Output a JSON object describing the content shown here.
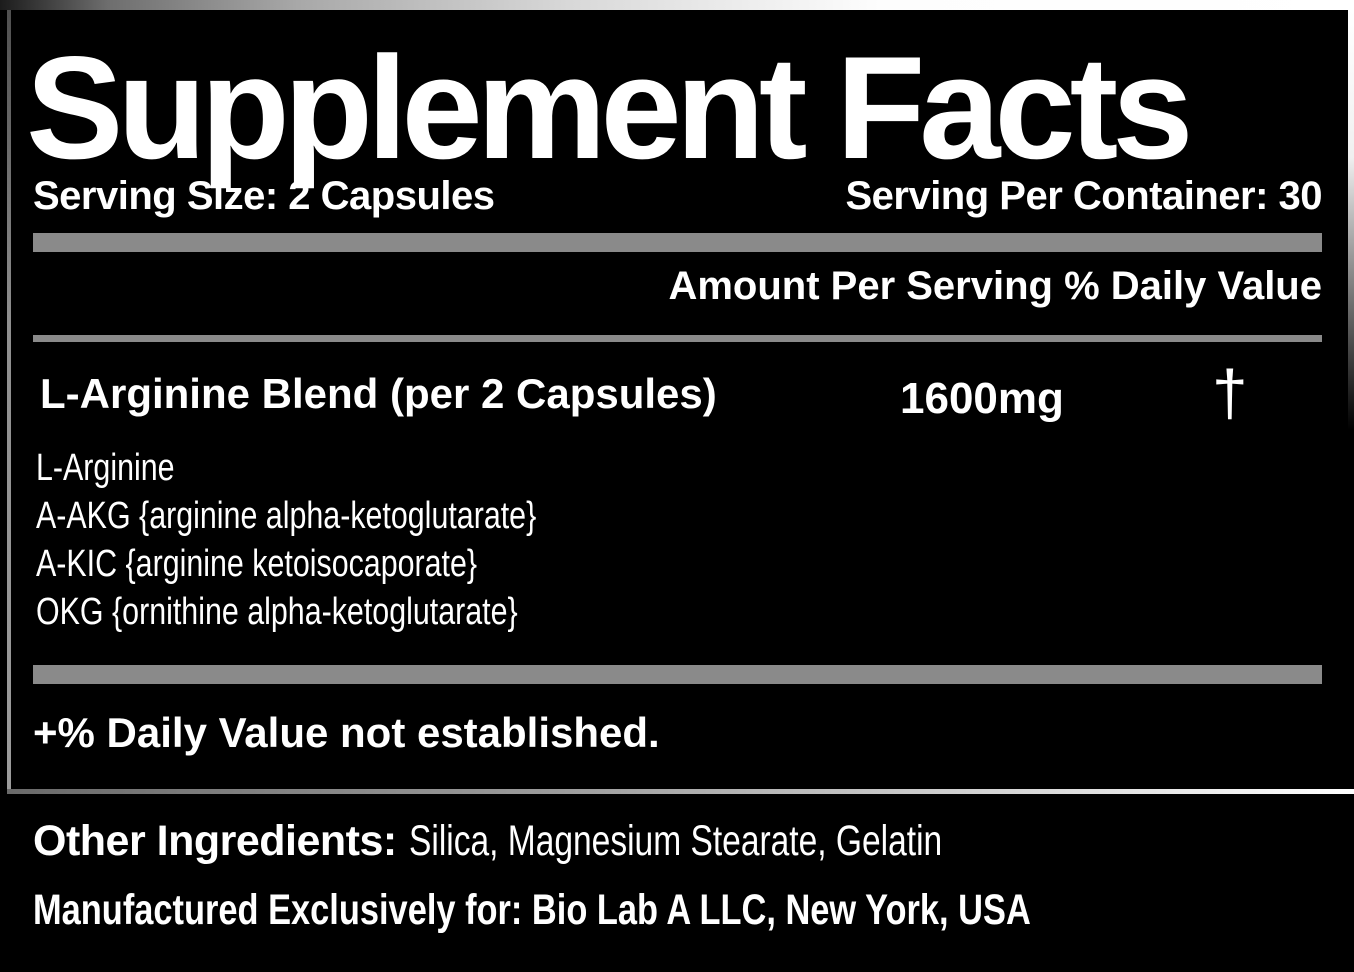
{
  "colors": {
    "background": "#000000",
    "text": "#ffffff",
    "separator_gray": "#8a8a8a",
    "frame_highlight": "#ffffff"
  },
  "panel": {
    "title": "Supplement Facts",
    "serving_size": "Serving Size: 2 Capsules",
    "servings_per_container": "Serving Per Container: 30",
    "columns_header": "Amount Per Serving % Daily Value",
    "blend": {
      "name": "L-Arginine Blend (per 2 Capsules)",
      "amount": "1600mg",
      "daily_value_symbol": "†"
    },
    "blend_components": [
      "L-Arginine",
      "A-AKG {arginine alpha-ketoglutarate}",
      "A-KIC {arginine ketoisocaporate}",
      "OKG {ornithine alpha-ketoglutarate}"
    ],
    "footnote": "+% Daily Value not established."
  },
  "footer": {
    "other_ingredients_label": "Other Ingredients:",
    "other_ingredients_value": "Silica, Magnesium Stearate, Gelatin",
    "manufactured_for": "Manufactured Exclusively for: Bio Lab A LLC, New York, USA"
  }
}
